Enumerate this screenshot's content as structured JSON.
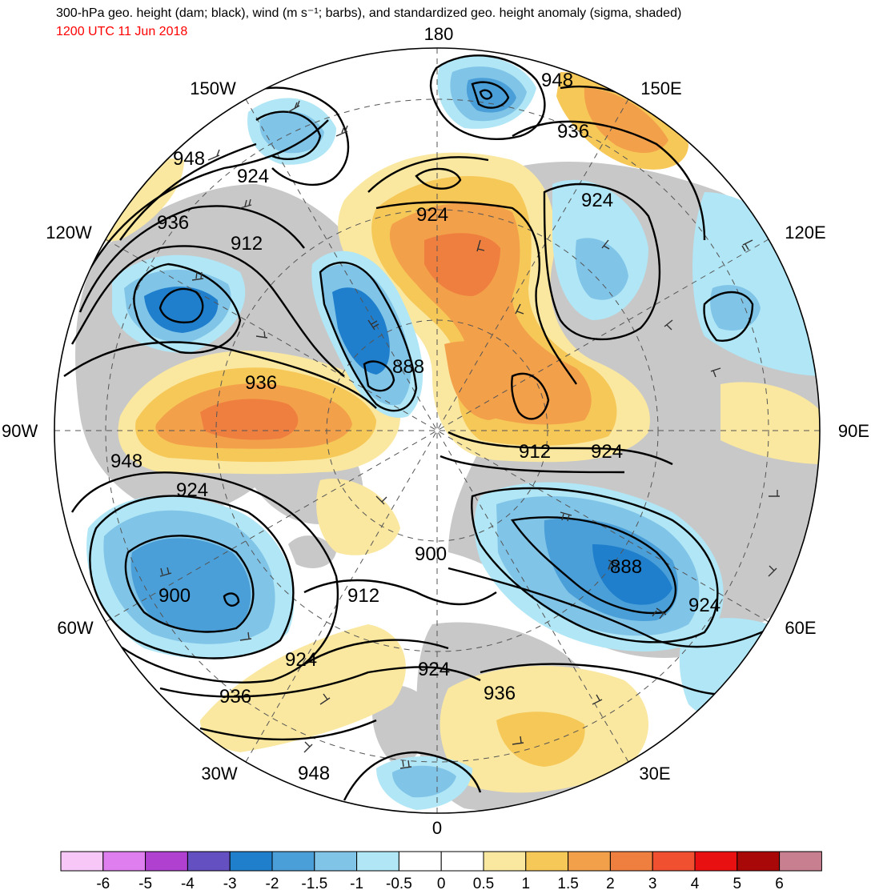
{
  "title": "300-hPa geo. height (dam; black), wind (m s⁻¹; barbs), and standardized geo. height anomaly (sigma, shaded)",
  "subtitle": "1200 UTC 11 Jun 2018",
  "lon_labels": [
    "180",
    "150E",
    "120E",
    "90E",
    "60E",
    "30E",
    "0",
    "30W",
    "60W",
    "90W",
    "120W",
    "150W"
  ],
  "contour_labels": [
    "948",
    "936",
    "924",
    "924",
    "948",
    "924",
    "936",
    "912",
    "888",
    "936",
    "948",
    "924",
    "912",
    "924",
    "900",
    "912",
    "900",
    "888",
    "924",
    "924",
    "936",
    "924",
    "936",
    "948"
  ],
  "colorbar": {
    "colors": [
      "#f7c8f7",
      "#df7fef",
      "#b040d0",
      "#6450c0",
      "#1f7fcc",
      "#4a9fd8",
      "#80c4e8",
      "#b0e6f5",
      "#ffffff",
      "#ffffff",
      "#fae8a0",
      "#f6c858",
      "#f3a04b",
      "#ef7f3f",
      "#f05030",
      "#e81010",
      "#a80808",
      "#c88090"
    ],
    "ticks": [
      "-6",
      "-5",
      "-4",
      "-3",
      "-2",
      "-1.5",
      "-1",
      "-0.5",
      "0",
      "0.5",
      "1",
      "1.5",
      "2",
      "3",
      "4",
      "5",
      "6"
    ]
  },
  "colors": {
    "land": "#c8c8c8",
    "contour": "#000000",
    "grid": "#555555"
  }
}
